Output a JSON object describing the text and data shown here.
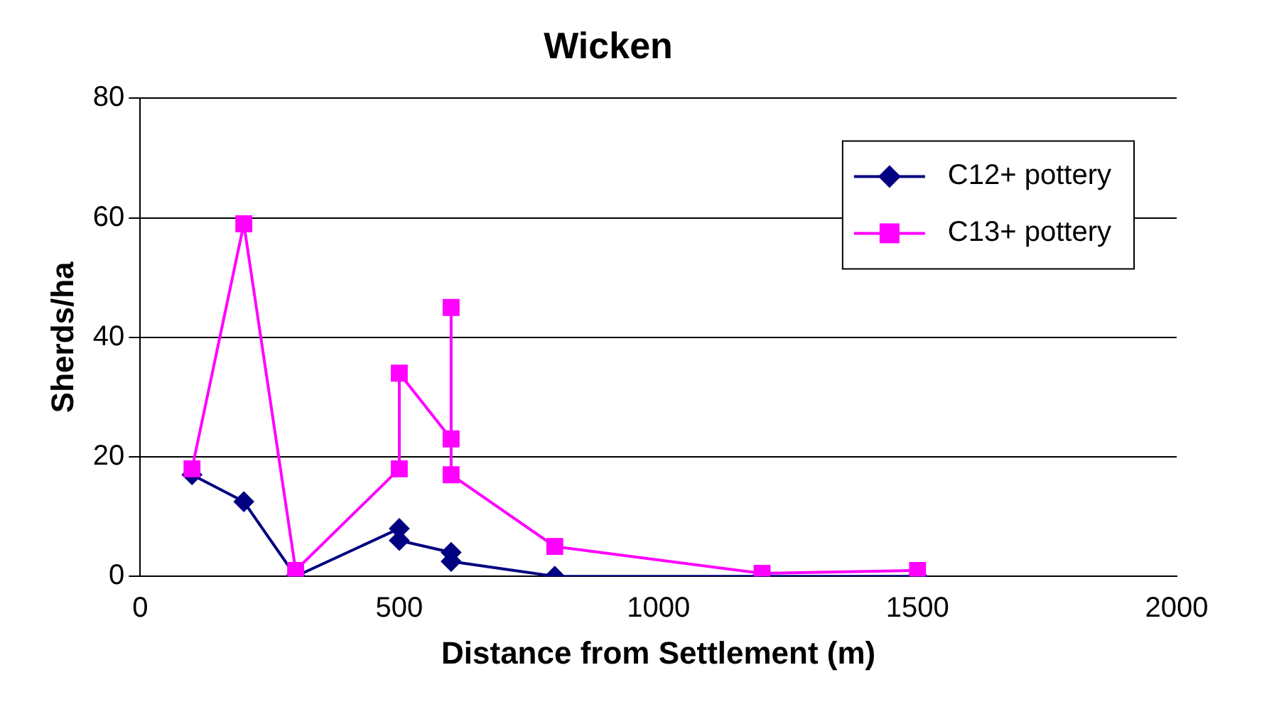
{
  "chart_data": {
    "type": "line",
    "title": "Wicken",
    "xlabel": "Distance from Settlement (m)",
    "ylabel": "Sherds/ha",
    "xlim": [
      0,
      2000
    ],
    "xticks": [
      0,
      500,
      1000,
      1500,
      2000
    ],
    "ylim": [
      0,
      80
    ],
    "yticks": [
      0,
      20,
      40,
      60,
      80
    ],
    "grid": "y",
    "legend": "top right",
    "series": [
      {
        "name": "C12+ pottery",
        "color": "#000080",
        "marker": "diamond",
        "x": [
          100,
          200,
          300,
          500,
          500,
          600,
          600,
          800,
          1200,
          1500
        ],
        "values": [
          17,
          12.5,
          0,
          8,
          6,
          4,
          2.5,
          0,
          0,
          0
        ]
      },
      {
        "name": "C13+ pottery",
        "color": "#ff00ff",
        "marker": "square",
        "x": [
          100,
          200,
          300,
          500,
          500,
          600,
          600,
          600,
          800,
          1200,
          1500
        ],
        "values": [
          18,
          59,
          1,
          18,
          34,
          23,
          45,
          17,
          5,
          0.5,
          1
        ]
      }
    ]
  }
}
